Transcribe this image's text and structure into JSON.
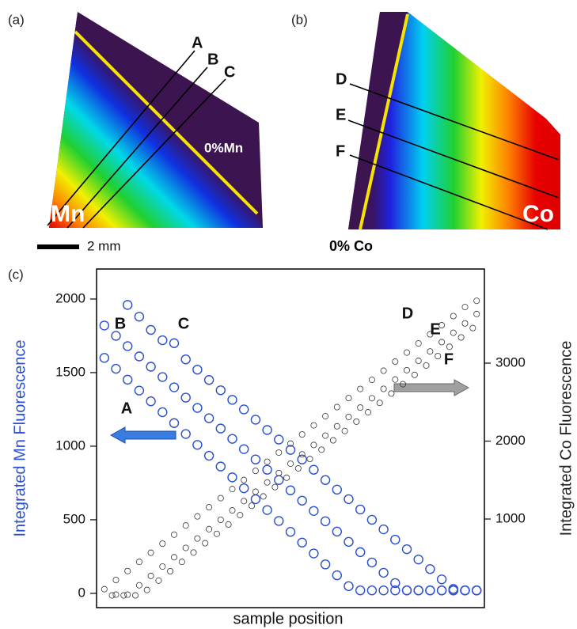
{
  "panel_a": {
    "label": "(a)",
    "lines": [
      "A",
      "B",
      "C"
    ],
    "annotation": "0%Mn",
    "element": "Mn",
    "scale_label": "2 mm"
  },
  "panel_b": {
    "label": "(b)",
    "lines": [
      "D",
      "E",
      "F"
    ],
    "annotation": "0% Co",
    "element": "Co"
  },
  "chart_data": {
    "type": "scatter",
    "panel_label": "(c)",
    "xlabel": "sample position",
    "ylabel": "Integrated Mn Fluorescence",
    "y2label": "Integrated Co Fluorescence",
    "xlim": [
      0,
      100
    ],
    "ylim": [
      -97,
      2204
    ],
    "yticks": [
      0,
      500,
      1000,
      1500,
      2000
    ],
    "y2lim": [
      -137,
      4208
    ],
    "y2ticks": [
      1000,
      2000,
      3000
    ],
    "series": [
      {
        "name": "A",
        "color": "#2a4fd0",
        "x": [
          2,
          5,
          8,
          11,
          14,
          17,
          20,
          23,
          26,
          29,
          32,
          35,
          38,
          41,
          44,
          47,
          50,
          53,
          56,
          59,
          62,
          65,
          68,
          71,
          74,
          77,
          80,
          83,
          86,
          89,
          92,
          95,
          98
        ],
        "values": [
          1600,
          1526,
          1452,
          1378,
          1305,
          1231,
          1157,
          1083,
          1009,
          935,
          862,
          788,
          714,
          640,
          566,
          492,
          418,
          345,
          271,
          197,
          123,
          49,
          20,
          20,
          20,
          20,
          20,
          20,
          20,
          20,
          20,
          20,
          20
        ]
      },
      {
        "name": "B",
        "color": "#2a4fd0",
        "x": [
          2,
          5,
          8,
          11,
          14,
          17,
          20,
          23,
          26,
          29,
          32,
          35,
          38,
          41,
          44,
          47,
          50,
          53,
          56,
          59,
          62,
          65,
          68,
          71,
          74,
          77,
          80,
          83,
          86,
          89,
          92,
          95,
          98
        ],
        "values": [
          1820,
          1750,
          1680,
          1610,
          1540,
          1470,
          1400,
          1330,
          1260,
          1190,
          1120,
          1050,
          980,
          910,
          840,
          770,
          700,
          630,
          560,
          490,
          420,
          350,
          280,
          210,
          140,
          70,
          20,
          20,
          20,
          20,
          20,
          20,
          20
        ]
      },
      {
        "name": "C",
        "color": "#2a4fd0",
        "x": [
          8,
          11,
          14,
          17,
          20,
          23,
          26,
          29,
          32,
          35,
          38,
          41,
          44,
          47,
          50,
          53,
          56,
          59,
          62,
          65,
          68,
          71,
          74,
          77,
          80,
          83,
          86,
          89,
          92,
          95,
          98
        ],
        "values": [
          1960,
          1880,
          1790,
          1720,
          1700,
          1590,
          1520,
          1450,
          1380,
          1315,
          1250,
          1180,
          1110,
          1045,
          975,
          910,
          840,
          770,
          705,
          640,
          570,
          500,
          435,
          365,
          300,
          230,
          165,
          95,
          30,
          20,
          20
        ]
      },
      {
        "name": "D",
        "color": "#333333",
        "axis": "y2",
        "x": [
          2,
          5,
          8,
          11,
          14,
          17,
          20,
          23,
          26,
          29,
          32,
          35,
          38,
          41,
          44,
          47,
          50,
          53,
          56,
          59,
          62,
          65,
          68,
          71,
          74,
          77,
          80,
          83,
          86,
          89,
          92,
          95,
          98
        ],
        "values": [
          100,
          217,
          333,
          450,
          567,
          684,
          800,
          917,
          1034,
          1151,
          1268,
          1384,
          1501,
          1618,
          1735,
          1852,
          1968,
          2085,
          2202,
          2319,
          2436,
          2552,
          2669,
          2786,
          2903,
          3020,
          3136,
          3253,
          3370,
          3487,
          3604,
          3720,
          3800
        ]
      },
      {
        "name": "E",
        "color": "#333333",
        "axis": "y2",
        "x": [
          5,
          8,
          11,
          14,
          17,
          20,
          23,
          26,
          29,
          32,
          35,
          38,
          41,
          44,
          47,
          50,
          53,
          56,
          59,
          62,
          65,
          68,
          71,
          74,
          77,
          80,
          83,
          86,
          89,
          92,
          95,
          98
        ],
        "values": [
          30,
          30,
          150,
          270,
          390,
          510,
          630,
          750,
          870,
          990,
          1110,
          1230,
          1350,
          1470,
          1590,
          1710,
          1830,
          1950,
          2070,
          2190,
          2310,
          2430,
          2550,
          2670,
          2790,
          2910,
          3030,
          3150,
          3270,
          3390,
          3510,
          3630
        ]
      },
      {
        "name": "F",
        "color": "#333333",
        "axis": "y2",
        "x": [
          4,
          7,
          10,
          13,
          16,
          19,
          22,
          25,
          28,
          31,
          34,
          37,
          40,
          43,
          46,
          49,
          52,
          55,
          58,
          61,
          64,
          67,
          70,
          73,
          76,
          79,
          82,
          85,
          88,
          91,
          94,
          97
        ],
        "values": [
          20,
          20,
          20,
          90,
          210,
          330,
          450,
          570,
          690,
          810,
          930,
          1050,
          1170,
          1290,
          1410,
          1530,
          1650,
          1770,
          1890,
          2010,
          2130,
          2250,
          2370,
          2490,
          2610,
          2730,
          2850,
          2970,
          3090,
          3210,
          3330,
          3450
        ]
      }
    ]
  }
}
